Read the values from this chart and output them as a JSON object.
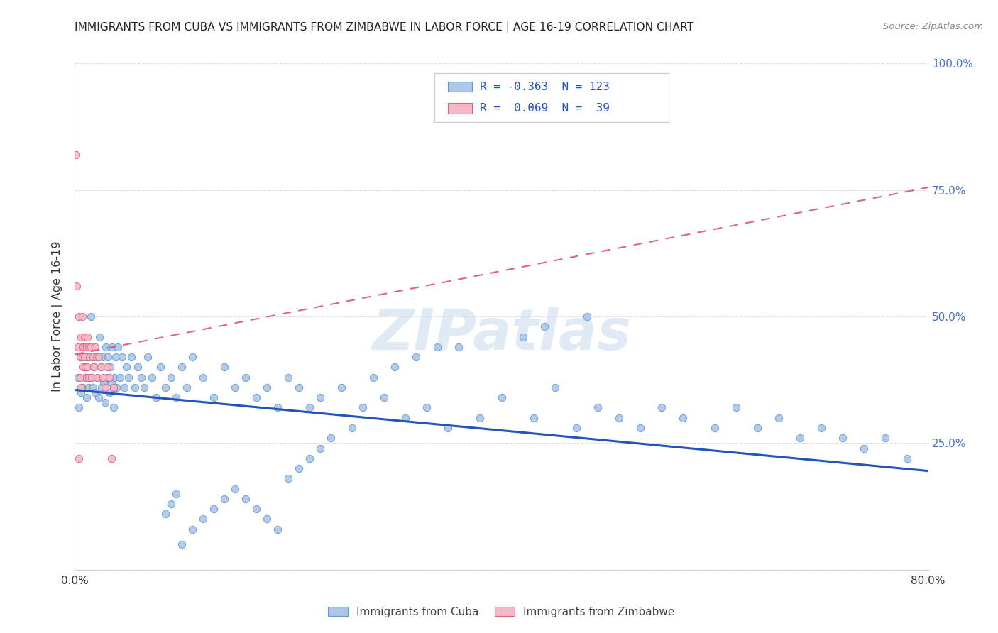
{
  "title": "IMMIGRANTS FROM CUBA VS IMMIGRANTS FROM ZIMBABWE IN LABOR FORCE | AGE 16-19 CORRELATION CHART",
  "source": "Source: ZipAtlas.com",
  "ylabel": "In Labor Force | Age 16-19",
  "x_min": 0.0,
  "x_max": 0.8,
  "y_min": 0.0,
  "y_max": 1.0,
  "cuba_color": "#aec6e8",
  "cuba_edge_color": "#5b9bd5",
  "zimbabwe_color": "#f4b8c8",
  "zimbabwe_edge_color": "#e06080",
  "cuba_R": -0.363,
  "cuba_N": 123,
  "zimbabwe_R": 0.069,
  "zimbabwe_N": 39,
  "trend_line_blue": "#2255bb",
  "trend_line_pink": "#dd4477",
  "watermark_text": "ZIPatlas",
  "legend_label_cuba": "Immigrants from Cuba",
  "legend_label_zimbabwe": "Immigrants from Zimbabwe",
  "cuba_trend_x0": 0.0,
  "cuba_trend_y0": 0.355,
  "cuba_trend_x1": 0.8,
  "cuba_trend_y1": 0.195,
  "zimb_trend_x0": 0.0,
  "zimb_trend_y0": 0.425,
  "zimb_trend_x1": 0.8,
  "zimb_trend_y1": 0.755,
  "cuba_scatter_x": [
    0.003,
    0.004,
    0.005,
    0.006,
    0.007,
    0.008,
    0.009,
    0.01,
    0.011,
    0.012,
    0.013,
    0.014,
    0.015,
    0.016,
    0.017,
    0.018,
    0.019,
    0.02,
    0.021,
    0.022,
    0.023,
    0.024,
    0.025,
    0.026,
    0.027,
    0.028,
    0.029,
    0.03,
    0.031,
    0.032,
    0.033,
    0.034,
    0.035,
    0.036,
    0.037,
    0.038,
    0.039,
    0.04,
    0.042,
    0.044,
    0.046,
    0.048,
    0.05,
    0.053,
    0.056,
    0.059,
    0.062,
    0.065,
    0.068,
    0.072,
    0.076,
    0.08,
    0.085,
    0.09,
    0.095,
    0.1,
    0.105,
    0.11,
    0.12,
    0.13,
    0.14,
    0.15,
    0.16,
    0.17,
    0.18,
    0.19,
    0.2,
    0.21,
    0.22,
    0.23,
    0.25,
    0.27,
    0.29,
    0.31,
    0.33,
    0.35,
    0.38,
    0.4,
    0.43,
    0.45,
    0.47,
    0.49,
    0.51,
    0.53,
    0.55,
    0.57,
    0.6,
    0.62,
    0.64,
    0.66,
    0.68,
    0.7,
    0.72,
    0.74,
    0.76,
    0.78,
    0.48,
    0.44,
    0.42,
    0.36,
    0.34,
    0.32,
    0.3,
    0.28,
    0.26,
    0.24,
    0.23,
    0.22,
    0.21,
    0.2,
    0.19,
    0.18,
    0.17,
    0.16,
    0.15,
    0.14,
    0.13,
    0.12,
    0.11,
    0.1,
    0.095,
    0.09,
    0.085
  ],
  "cuba_scatter_y": [
    0.38,
    0.32,
    0.42,
    0.35,
    0.44,
    0.36,
    0.4,
    0.38,
    0.34,
    0.42,
    0.36,
    0.44,
    0.5,
    0.38,
    0.36,
    0.4,
    0.35,
    0.42,
    0.38,
    0.34,
    0.46,
    0.4,
    0.36,
    0.42,
    0.37,
    0.33,
    0.44,
    0.38,
    0.42,
    0.35,
    0.4,
    0.37,
    0.44,
    0.32,
    0.38,
    0.42,
    0.36,
    0.44,
    0.38,
    0.42,
    0.36,
    0.4,
    0.38,
    0.42,
    0.36,
    0.4,
    0.38,
    0.36,
    0.42,
    0.38,
    0.34,
    0.4,
    0.36,
    0.38,
    0.34,
    0.4,
    0.36,
    0.42,
    0.38,
    0.34,
    0.4,
    0.36,
    0.38,
    0.34,
    0.36,
    0.32,
    0.38,
    0.36,
    0.32,
    0.34,
    0.36,
    0.32,
    0.34,
    0.3,
    0.32,
    0.28,
    0.3,
    0.34,
    0.3,
    0.36,
    0.28,
    0.32,
    0.3,
    0.28,
    0.32,
    0.3,
    0.28,
    0.32,
    0.28,
    0.3,
    0.26,
    0.28,
    0.26,
    0.24,
    0.26,
    0.22,
    0.5,
    0.48,
    0.46,
    0.44,
    0.44,
    0.42,
    0.4,
    0.38,
    0.28,
    0.26,
    0.24,
    0.22,
    0.2,
    0.18,
    0.08,
    0.1,
    0.12,
    0.14,
    0.16,
    0.14,
    0.12,
    0.1,
    0.08,
    0.05,
    0.15,
    0.13,
    0.11
  ],
  "zimb_scatter_x": [
    0.001,
    0.002,
    0.003,
    0.004,
    0.004,
    0.005,
    0.005,
    0.006,
    0.006,
    0.007,
    0.007,
    0.008,
    0.008,
    0.009,
    0.009,
    0.01,
    0.01,
    0.011,
    0.011,
    0.012,
    0.012,
    0.013,
    0.013,
    0.014,
    0.015,
    0.016,
    0.017,
    0.018,
    0.019,
    0.02,
    0.021,
    0.022,
    0.024,
    0.026,
    0.028,
    0.03,
    0.032,
    0.034,
    0.036
  ],
  "zimb_scatter_y": [
    0.82,
    0.56,
    0.44,
    0.5,
    0.22,
    0.42,
    0.38,
    0.46,
    0.36,
    0.5,
    0.42,
    0.44,
    0.4,
    0.46,
    0.42,
    0.44,
    0.4,
    0.44,
    0.38,
    0.46,
    0.4,
    0.44,
    0.38,
    0.42,
    0.44,
    0.38,
    0.42,
    0.4,
    0.44,
    0.42,
    0.38,
    0.42,
    0.4,
    0.38,
    0.36,
    0.4,
    0.38,
    0.22,
    0.36
  ]
}
